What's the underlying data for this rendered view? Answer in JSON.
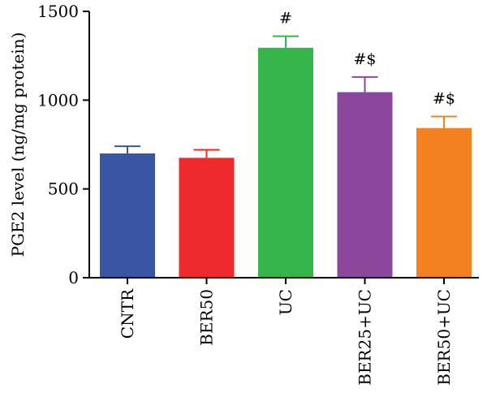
{
  "chart_data": {
    "type": "bar",
    "title": "",
    "xlabel": "",
    "ylabel": "PGE2 level (ng/mg protein)",
    "ylim": [
      0,
      1500
    ],
    "yticks": [
      0,
      500,
      1000,
      1500
    ],
    "grid": false,
    "categories": [
      "CNTR",
      "BER50",
      "UC",
      "BER25+UC",
      "BER50+UC"
    ],
    "values": [
      700,
      675,
      1295,
      1045,
      843
    ],
    "errors": [
      40,
      45,
      65,
      85,
      65
    ],
    "annotations": [
      "",
      "",
      "#",
      "#$",
      "#$"
    ],
    "colors": [
      "#3a55a4",
      "#ee2a2b",
      "#35b44a",
      "#8b479b",
      "#f48120"
    ]
  }
}
